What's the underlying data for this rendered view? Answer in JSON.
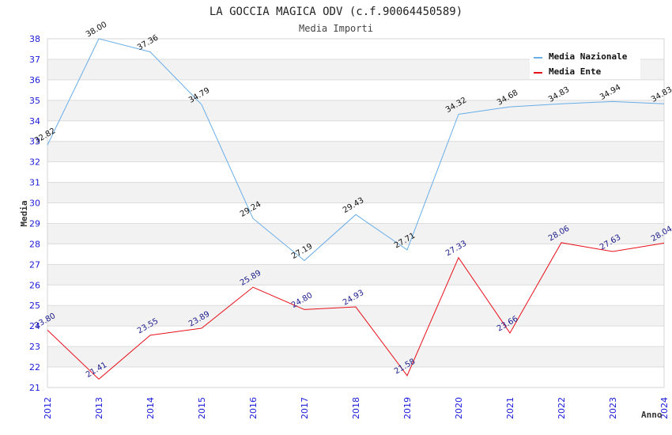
{
  "chart_data": {
    "type": "line",
    "title": "LA GOCCIA MAGICA ODV (c.f.90064450589)",
    "subtitle": "Media Importi",
    "xlabel": "Anno",
    "ylabel": "Media",
    "ylim": [
      21,
      38
    ],
    "yticks": [
      "21",
      "22",
      "23",
      "24",
      "25",
      "26",
      "27",
      "28",
      "29",
      "30",
      "31",
      "32",
      "33",
      "34",
      "35",
      "36",
      "37",
      "38"
    ],
    "categories": [
      "2012",
      "2013",
      "2014",
      "2015",
      "2016",
      "2017",
      "2018",
      "2019",
      "2020",
      "2021",
      "2022",
      "2023",
      "2024"
    ],
    "grid": true,
    "legend_position": "top-right",
    "series": [
      {
        "name": "Media Nazionale",
        "color": "#6aaee8",
        "values": [
          32.82,
          38.0,
          37.36,
          34.79,
          29.24,
          27.19,
          29.43,
          27.71,
          34.32,
          34.68,
          34.83,
          34.94,
          34.83
        ],
        "labels": [
          "32.82",
          "38.00",
          "37.36",
          "34.79",
          "29.24",
          "27.19",
          "29.43",
          "27.71",
          "34.32",
          "34.68",
          "34.83",
          "34.94",
          "34.83"
        ]
      },
      {
        "name": "Media Ente",
        "color": "#e8101a",
        "values": [
          23.8,
          21.41,
          23.55,
          23.89,
          25.89,
          24.8,
          24.93,
          21.58,
          27.33,
          23.66,
          28.06,
          27.63,
          28.04
        ],
        "labels": [
          "23.80",
          "21.41",
          "23.55",
          "23.89",
          "25.89",
          "24.80",
          "24.93",
          "21.58",
          "27.33",
          "23.66",
          "28.06",
          "27.63",
          "28.04"
        ]
      }
    ]
  }
}
